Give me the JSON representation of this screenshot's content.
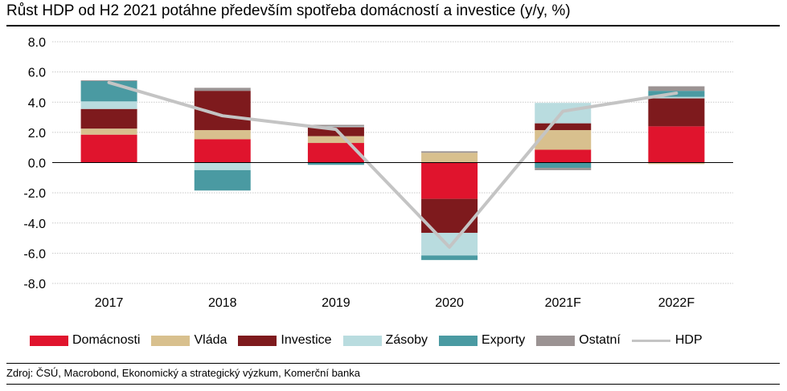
{
  "title": "Růst HDP od H2 2021 potáhne především spotřeba domácností a investice (y/y, %)",
  "source": "Zdroj: ČSÚ, Macrobond, Ekonomický a strategický výzkum, Komerční banka",
  "chart_data": {
    "type": "bar",
    "stacked": true,
    "categories": [
      "2017",
      "2018",
      "2019",
      "2020",
      "2021F",
      "2022F"
    ],
    "ylim": [
      -8,
      8
    ],
    "yticks": [
      8,
      6,
      4,
      2,
      0,
      -2,
      -4,
      -6,
      -8
    ],
    "ytick_labels": [
      "8.0",
      "6.0",
      "4.0",
      "2.0",
      "0.0",
      "-2.0",
      "-4.0",
      "-6.0",
      "-8.0"
    ],
    "grid": true,
    "legend_position": "bottom",
    "series": [
      {
        "name": "Domácnosti",
        "color": "#e0142d",
        "values": [
          1.85,
          1.55,
          1.3,
          -2.4,
          0.85,
          2.4
        ]
      },
      {
        "name": "Vláda",
        "color": "#d8c08e",
        "values": [
          0.4,
          0.6,
          0.45,
          0.65,
          1.3,
          -0.1
        ]
      },
      {
        "name": "Investice",
        "color": "#7e1a1d",
        "values": [
          1.3,
          2.6,
          0.6,
          -2.25,
          0.45,
          1.85
        ]
      },
      {
        "name": "Zásoby",
        "color": "#b9dcdf",
        "values": [
          0.5,
          -0.5,
          0.05,
          -1.5,
          1.35,
          0.1
        ]
      },
      {
        "name": "Exporty",
        "color": "#4a9aa2",
        "values": [
          1.35,
          -1.35,
          -0.15,
          -0.3,
          -0.35,
          0.4
        ]
      },
      {
        "name": "Ostatní",
        "color": "#9b9393",
        "values": [
          0.05,
          0.2,
          0.1,
          0.1,
          -0.15,
          0.3
        ]
      }
    ],
    "line": {
      "name": "HDP",
      "color": "#c4c4c4",
      "values": [
        5.3,
        3.1,
        2.2,
        -5.6,
        3.4,
        4.6
      ]
    }
  }
}
